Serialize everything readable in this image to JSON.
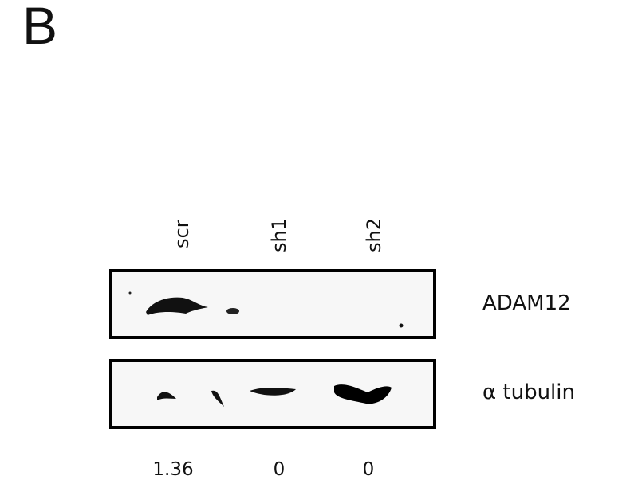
{
  "panel_label": "B",
  "lanes": [
    "scr",
    "sh1",
    "sh2"
  ],
  "blots": [
    {
      "label": "ADAM12"
    },
    {
      "label": "α tubulin"
    }
  ],
  "quantification": [
    "1.36",
    "0",
    "0"
  ]
}
